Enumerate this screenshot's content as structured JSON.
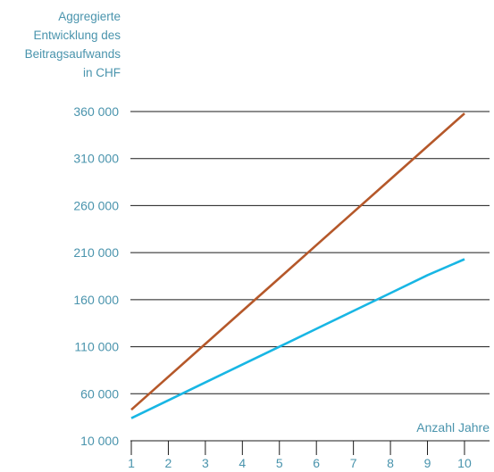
{
  "chart_data": {
    "type": "line",
    "ylabel_lines": [
      "Aggregierte",
      "Entwicklung des",
      "Beitragsaufwands",
      "in CHF"
    ],
    "xlabel": "Anzahl Jahre",
    "x": [
      1,
      2,
      3,
      4,
      5,
      6,
      7,
      8,
      9,
      10
    ],
    "x_tick_labels": [
      "1",
      "2",
      "3",
      "4",
      "5",
      "6",
      "7",
      "8",
      "9",
      "10"
    ],
    "y_ticks": [
      10000,
      60000,
      110000,
      160000,
      210000,
      260000,
      310000,
      360000
    ],
    "y_tick_labels": [
      "10 000",
      "60 000",
      "110 000",
      "160 000",
      "210 000",
      "260 000",
      "310 000",
      "360 000"
    ],
    "ylim": [
      10000,
      360000
    ],
    "grid": true,
    "series": [
      {
        "color": "#b5582a",
        "values": [
          43000,
          78000,
          113000,
          148000,
          183000,
          218000,
          253000,
          288000,
          323000,
          358000
        ]
      },
      {
        "color": "#18b6e4",
        "values": [
          34000,
          53000,
          72000,
          91000,
          110000,
          129000,
          148000,
          167000,
          186000,
          203000
        ]
      }
    ],
    "axis_color": "#1a1a1a",
    "text_color": "#4a94ad"
  }
}
